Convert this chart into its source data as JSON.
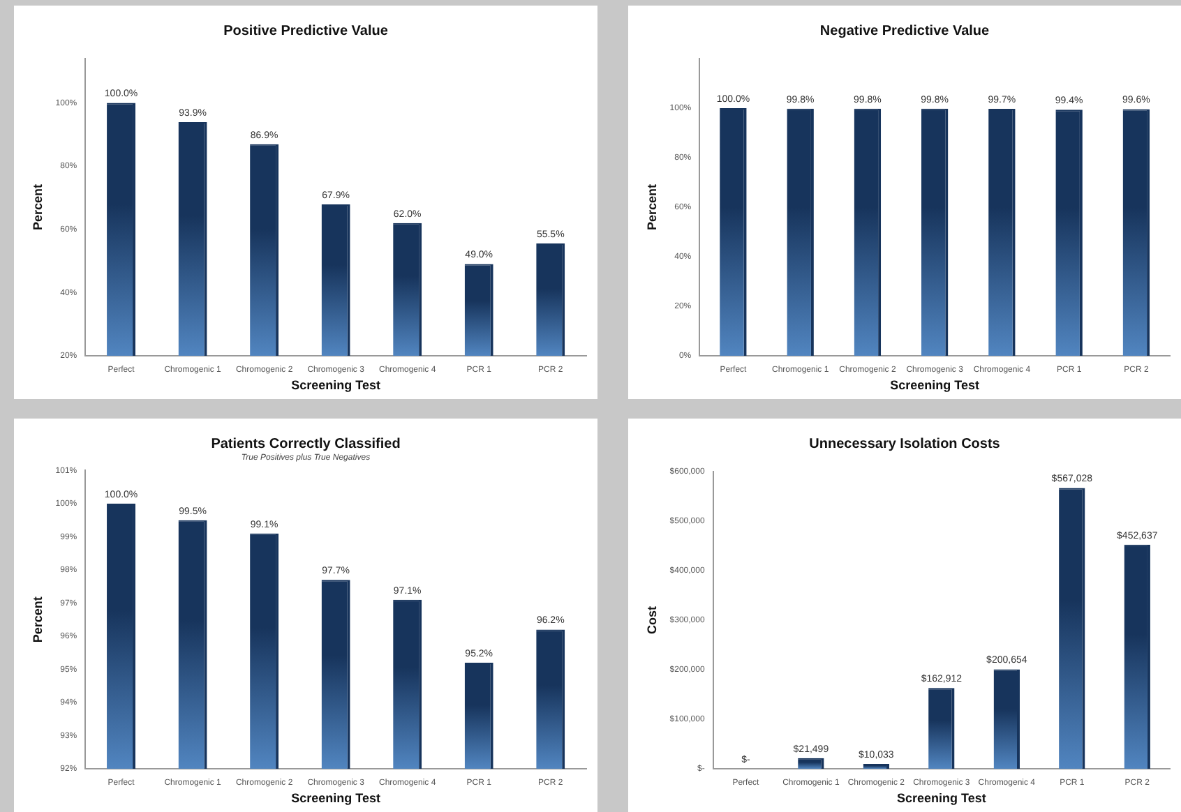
{
  "chart_data": [
    {
      "type": "bar",
      "title": "Positive Predictive Value",
      "xlabel": "Screening Test",
      "ylabel": "Percent",
      "categories": [
        "Perfect",
        "Chromogenic 1",
        "Chromogenic 2",
        "Chromogenic 3",
        "Chromogenic 4",
        "PCR 1",
        "PCR 2"
      ],
      "values": [
        100.0,
        93.9,
        86.9,
        67.9,
        62.0,
        49.0,
        55.5
      ],
      "value_labels": [
        "100.0%",
        "93.9%",
        "86.9%",
        "67.9%",
        "62.0%",
        "49.0%",
        "55.5%"
      ],
      "color": "#17345c",
      "ylim": [
        20,
        114
      ],
      "yticks": [
        {
          "value": 20,
          "label": "20%"
        },
        {
          "value": 40,
          "label": "40%"
        },
        {
          "value": 60,
          "label": "60%"
        },
        {
          "value": 80,
          "label": "80%"
        },
        {
          "value": 100,
          "label": "100%"
        }
      ],
      "grid": false,
      "legend": false
    },
    {
      "type": "bar",
      "title": "Negative Predictive Value",
      "xlabel": "Screening Test",
      "ylabel": "Percent",
      "categories": [
        "Perfect",
        "Chromogenic 1",
        "Chromogenic 2",
        "Chromogenic 3",
        "Chromogenic 4",
        "PCR 1",
        "PCR 2"
      ],
      "values": [
        100.0,
        99.8,
        99.8,
        99.8,
        99.7,
        99.4,
        99.6
      ],
      "value_labels": [
        "100.0%",
        "99.8%",
        "99.8%",
        "99.8%",
        "99.7%",
        "99.4%",
        "99.6%"
      ],
      "color": "#17345c",
      "ylim": [
        0,
        120
      ],
      "yticks": [
        {
          "value": 0,
          "label": "0%"
        },
        {
          "value": 20,
          "label": "20%"
        },
        {
          "value": 40,
          "label": "40%"
        },
        {
          "value": 60,
          "label": "60%"
        },
        {
          "value": 80,
          "label": "80%"
        },
        {
          "value": 100,
          "label": "100%"
        }
      ],
      "grid": false,
      "legend": false
    },
    {
      "type": "bar",
      "title": "Patients Correctly Classified",
      "subtitle": "True Positives plus True Negatives",
      "xlabel": "Screening Test",
      "ylabel": "Percent",
      "categories": [
        "Perfect",
        "Chromogenic 1",
        "Chromogenic 2",
        "Chromogenic 3",
        "Chromogenic 4",
        "PCR 1",
        "PCR 2"
      ],
      "values": [
        100.0,
        99.5,
        99.1,
        97.7,
        97.1,
        95.2,
        96.2
      ],
      "value_labels": [
        "100.0%",
        "99.5%",
        "99.1%",
        "97.7%",
        "97.1%",
        "95.2%",
        "96.2%"
      ],
      "color": "#17345c",
      "ylim": [
        92,
        101
      ],
      "yticks": [
        {
          "value": 92,
          "label": "92%"
        },
        {
          "value": 93,
          "label": "93%"
        },
        {
          "value": 94,
          "label": "94%"
        },
        {
          "value": 95,
          "label": "95%"
        },
        {
          "value": 96,
          "label": "96%"
        },
        {
          "value": 97,
          "label": "97%"
        },
        {
          "value": 98,
          "label": "98%"
        },
        {
          "value": 99,
          "label": "99%"
        },
        {
          "value": 100,
          "label": "100%"
        },
        {
          "value": 101,
          "label": "101%"
        }
      ],
      "grid": false,
      "legend": false
    },
    {
      "type": "bar",
      "title": "Unnecessary Isolation Costs",
      "xlabel": "Screening Test",
      "ylabel": "Cost",
      "categories": [
        "Perfect",
        "Chromogenic 1",
        "Chromogenic 2",
        "Chromogenic 3",
        "Chromogenic 4",
        "PCR 1",
        "PCR 2"
      ],
      "values": [
        0,
        21499,
        10033,
        162912,
        200654,
        567028,
        452637
      ],
      "value_labels": [
        "$-",
        "$21,499",
        "$10,033",
        "$162,912",
        "$200,654",
        "$567,028",
        "$452,637"
      ],
      "color": "#17345c",
      "ylim": [
        0,
        600000
      ],
      "yticks": [
        {
          "value": 0,
          "label": "$-"
        },
        {
          "value": 100000,
          "label": "$100,000"
        },
        {
          "value": 200000,
          "label": "$200,000"
        },
        {
          "value": 300000,
          "label": "$300,000"
        },
        {
          "value": 400000,
          "label": "$400,000"
        },
        {
          "value": 500000,
          "label": "$500,000"
        },
        {
          "value": 600000,
          "label": "$600,000"
        }
      ],
      "grid": false,
      "legend": false
    }
  ]
}
